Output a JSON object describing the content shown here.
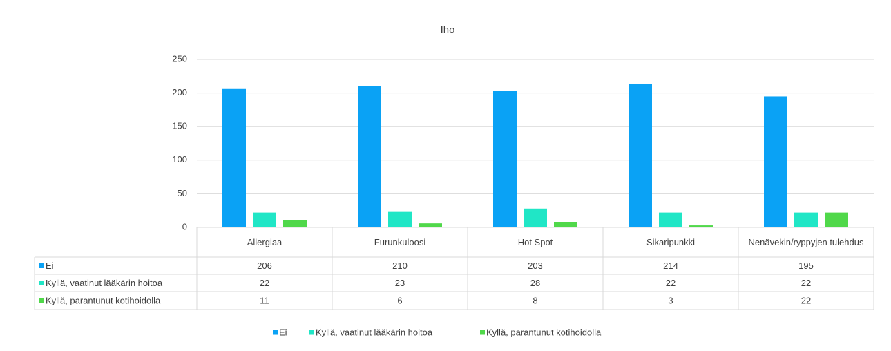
{
  "chart_data": {
    "type": "bar",
    "title": "Iho",
    "categories": [
      "Allergiaa",
      "Furunkuloosi",
      "Hot Spot",
      "Sikaripunkki",
      "Nenävekin/ryppyjen tulehdus"
    ],
    "series": [
      {
        "name": "Ei",
        "color": "#0aa2f5",
        "values": [
          206,
          210,
          203,
          214,
          195
        ]
      },
      {
        "name": "Kyllä, vaatinut lääkärin hoitoa",
        "color": "#20e6c6",
        "values": [
          22,
          23,
          28,
          22,
          22
        ]
      },
      {
        "name": "Kyllä, parantunut kotihoidolla",
        "color": "#50d84a",
        "values": [
          11,
          6,
          8,
          3,
          22
        ]
      }
    ],
    "ylim": [
      0,
      250
    ],
    "yticks": [
      0,
      50,
      100,
      150,
      200,
      250
    ],
    "grid": true,
    "legend": "bottom"
  }
}
